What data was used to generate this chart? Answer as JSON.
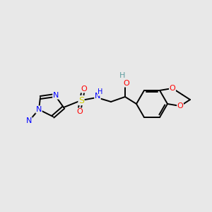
{
  "background_color": "#e8e8e8",
  "bond_color": "#000000",
  "atom_colors": {
    "N": "#0000ff",
    "O": "#ff0000",
    "S": "#cccc00",
    "C": "#000000",
    "H": "#5f9ea0"
  },
  "lw": 1.4,
  "fs": 8.0
}
